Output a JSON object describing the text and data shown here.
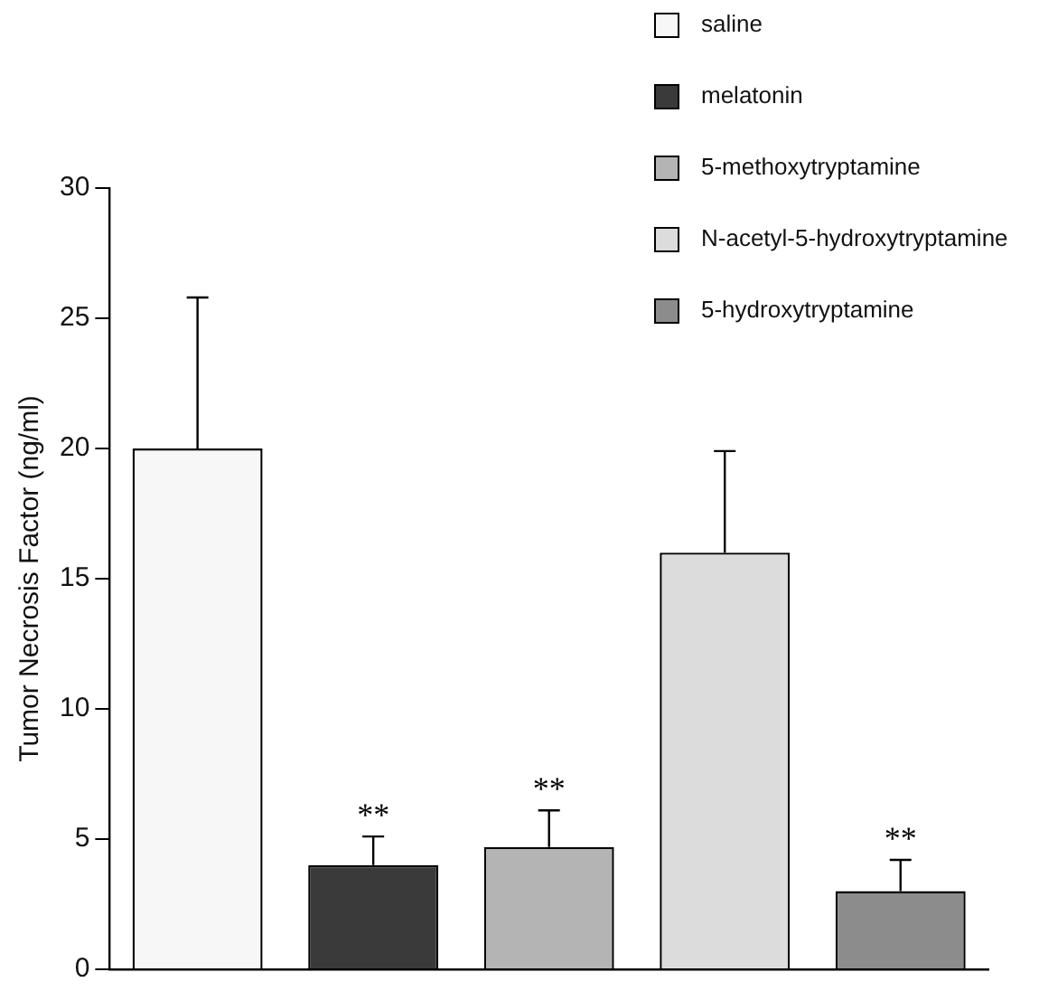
{
  "chart_data": {
    "type": "bar",
    "ylabel": "Tumor Necrosis Factor (ng/ml)",
    "categories": [
      null
    ],
    "series": [
      {
        "name": "saline",
        "color": "#f7f7f7",
        "values": [
          20
        ],
        "errors": [
          [
            20,
            25.8
          ]
        ],
        "value_labels": [
          null
        ]
      },
      {
        "name": "melatonin",
        "color": "#3a3a3a",
        "values": [
          4
        ],
        "errors": [
          [
            4,
            5.1
          ]
        ],
        "value_labels": [
          "**"
        ]
      },
      {
        "name": "5-methoxytryptamine",
        "color": "#b4b4b4",
        "values": [
          4.7
        ],
        "errors": [
          [
            4.7,
            6.1
          ]
        ],
        "value_labels": [
          "**"
        ]
      },
      {
        "name": "N-acetyl-5-hydroxytryptamine",
        "color": "#dcdcdc",
        "values": [
          16
        ],
        "errors": [
          [
            16,
            19.9
          ]
        ],
        "value_labels": [
          null
        ]
      },
      {
        "name": "5-hydroxytryptamine",
        "color": "#8c8c8c",
        "values": [
          3
        ],
        "errors": [
          [
            3,
            4.2
          ]
        ],
        "value_labels": [
          "**"
        ]
      }
    ],
    "ylim": [
      0,
      30
    ],
    "yticks": [
      0,
      5,
      10,
      15,
      20,
      25,
      30
    ],
    "grid": false,
    "legend": "top right",
    "tick_labels": "y"
  }
}
